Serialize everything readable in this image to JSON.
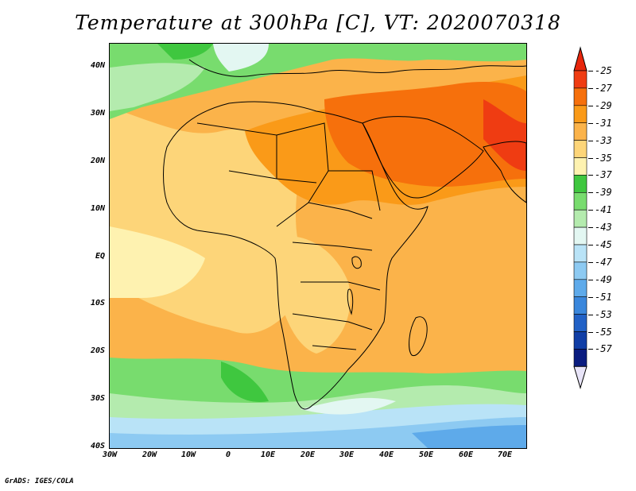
{
  "title": "Temperature at 300hPa [C], VT: 2020070318",
  "credit": "GrADS: IGES/COLA",
  "lat_labels": [
    "40N",
    "30N",
    "20N",
    "10N",
    "EQ",
    "10S",
    "20S",
    "30S",
    "40S"
  ],
  "lon_labels": [
    "30W",
    "20W",
    "10W",
    "0",
    "10E",
    "20E",
    "30E",
    "40E",
    "50E",
    "60E",
    "70E"
  ],
  "colorbar": {
    "labels": [
      "-25",
      "-27",
      "-29",
      "-31",
      "-33",
      "-35",
      "-37",
      "-39",
      "-41",
      "-43",
      "-45",
      "-47",
      "-49",
      "-51",
      "-53",
      "-55",
      "-57"
    ],
    "colors": [
      "#ef3c12",
      "#f6700c",
      "#fa9a18",
      "#fbb34a",
      "#fdd579",
      "#fef2b0",
      "#3fc73f",
      "#78dc6e",
      "#b4ebae",
      "#e3f7f2",
      "#b9e3f7",
      "#8dcaf2",
      "#5eaaea",
      "#3a87dc",
      "#2161c6",
      "#103ea6",
      "#0a1c80"
    ],
    "over_color": "#e8260c",
    "under_color": "#e8e4f8"
  },
  "palette": {
    "warm1": "#fef2b0",
    "warm2": "#fdd579",
    "warm3": "#fbb34a",
    "warm4": "#fa9a18",
    "warm5": "#f6700c",
    "warm6": "#ef3c12",
    "cool1": "#3fc73f",
    "cool2": "#78dc6e",
    "cool3": "#b4ebae",
    "cool4": "#e3f7f2",
    "cool5": "#b9e3f7",
    "cool6": "#8dcaf2",
    "cool7": "#5eaaea",
    "coast": "#000000"
  }
}
